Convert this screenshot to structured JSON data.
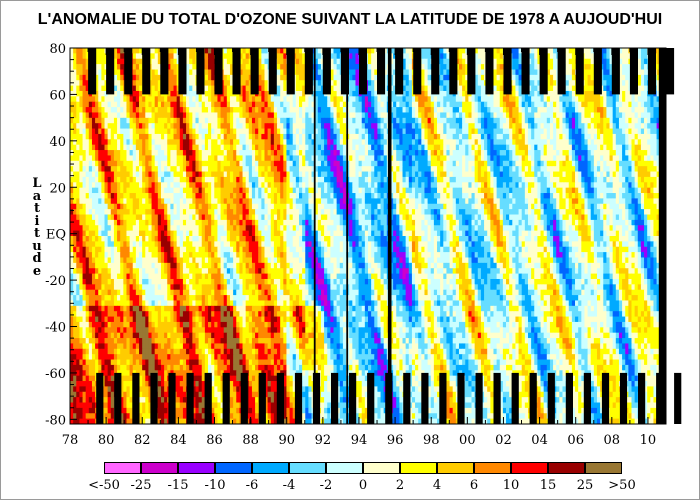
{
  "title": "L'ANOMALIE DU TOTAL D'OZONE SUIVANT LA LATITUDE DE 1978 A AUJOUD'HUI",
  "chart_data": {
    "type": "heatmap",
    "title": "L'ANOMALIE DU TOTAL D'OZONE SUIVANT LA LATITUDE DE 1978 A AUJOUD'HUI",
    "xlabel": "",
    "ylabel": "Latitude",
    "xlim": [
      1978,
      2011
    ],
    "ylim": [
      -82,
      80
    ],
    "x_ticks": [
      "78",
      "80",
      "82",
      "84",
      "86",
      "88",
      "90",
      "92",
      "94",
      "96",
      "98",
      "00",
      "02",
      "04",
      "06",
      "08",
      "10"
    ],
    "x_tick_values": [
      1978,
      1980,
      1982,
      1984,
      1986,
      1988,
      1990,
      1992,
      1994,
      1996,
      1998,
      2000,
      2002,
      2004,
      2006,
      2008,
      2010
    ],
    "y_ticks": [
      "80",
      "60",
      "40",
      "20",
      "EQ",
      "-20",
      "-40",
      "-60",
      "-80"
    ],
    "y_tick_values": [
      80,
      60,
      40,
      20,
      0,
      -20,
      -40,
      -60,
      -80
    ],
    "grid": false,
    "legend": {
      "placement": "bottom",
      "labels": [
        "<-50",
        "-25",
        "-15",
        "-10",
        "-6",
        "-4",
        "-2",
        "0",
        "2",
        "4",
        "6",
        "10",
        "15",
        "25",
        ">50"
      ],
      "colors": [
        "#ff66ff",
        "#cc00cc",
        "#9900ff",
        "#0066ff",
        "#00aaff",
        "#66ddff",
        "#ccffff",
        "#ffffcc",
        "#ffff00",
        "#ffcc00",
        "#ff8800",
        "#ff0000",
        "#990000",
        "#997733"
      ]
    },
    "missing_data_color": "#000000"
  }
}
